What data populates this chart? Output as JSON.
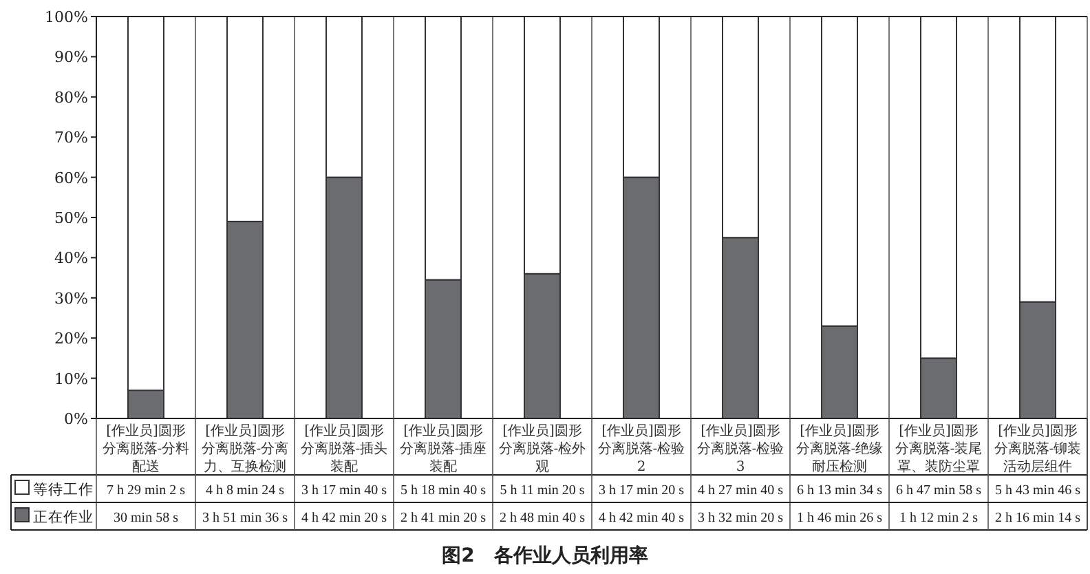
{
  "chart_data": {
    "type": "bar",
    "stacked": true,
    "title": "图2　各作业人员利用率",
    "categories": [
      "[作业员]圆形分离脱落-分料配送",
      "[作业员]圆形分离脱落-分离力、互换检测",
      "[作业员]圆形分离脱落-插头装配",
      "[作业员]圆形分离脱落-插座装配",
      "[作业员]圆形分离脱落-检外观",
      "[作业员]圆形分离脱落-检验2",
      "[作业员]圆形分离脱落-检验3",
      "[作业员]圆形分离脱落-绝缘耐压检测",
      "[作业员]圆形分离脱落-装尾罩、装防尘罩",
      "[作业员]圆形分离脱落-铆装活动层组件"
    ],
    "series": [
      {
        "name": "正在作业",
        "color": "#6b6c70",
        "values": [
          7,
          49,
          60,
          34.5,
          36,
          60,
          45,
          23,
          15,
          29
        ]
      },
      {
        "name": "等待工作",
        "color": "#ffffff",
        "values": [
          93,
          51,
          40,
          65.5,
          64,
          40,
          55,
          77,
          85,
          71
        ]
      }
    ],
    "annotations": [
      "7 h 29 min 2 s",
      "4 h 8 min 24 s",
      "3 h 17 min 40 s",
      "5 h 18 min 40 s",
      "5 h 11 min 20 s",
      "3 h 17 min 20 s",
      "4 h 27 min 40 s",
      "6 h 13 min 34 s",
      "6 h 47 min 58 s",
      "5 h 43 min 46 s",
      "30 min 58 s",
      "3 h 51 min 36 s",
      "4 h 42 min 20 s",
      "2 h 41 min 20 s",
      "2 h 48 min 40 s",
      "4 h 42 min 40 s",
      "3 h 32 min 20 s",
      "1 h 46 min 26 s",
      "1 h 12 min 2 s",
      "2 h 16 min 14 s"
    ],
    "ylim": [
      0,
      100
    ],
    "yticks": [
      {
        "value": 0,
        "label": "0%"
      },
      {
        "value": 10,
        "label": "10%"
      },
      {
        "value": 20,
        "label": "20%"
      },
      {
        "value": 30,
        "label": "30%"
      },
      {
        "value": 40,
        "label": "40%"
      },
      {
        "value": 50,
        "label": "50%"
      },
      {
        "value": 60,
        "label": "60%"
      },
      {
        "value": 70,
        "label": "70%"
      },
      {
        "value": 80,
        "label": "80%"
      },
      {
        "value": 90,
        "label": "90%"
      },
      {
        "value": 100,
        "label": "100%"
      }
    ],
    "legend": "bottom left",
    "grid": false
  }
}
